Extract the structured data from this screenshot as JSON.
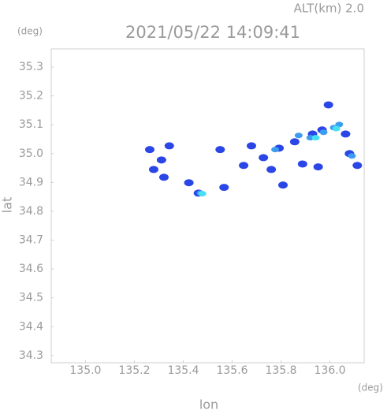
{
  "chart_data": {
    "type": "scatter",
    "title": "2021/05/22 14:09:41",
    "subtitle": "ALT(km) 2.0",
    "y_unit": "(deg)",
    "x_unit": "(deg)",
    "x_label": "lon",
    "y_label": "lat",
    "xlim": [
      134.86,
      136.14
    ],
    "ylim": [
      34.275,
      35.363
    ],
    "xticks": [
      {
        "value": 135.0,
        "label": "135.0"
      },
      135.2,
      135.4,
      135.6,
      135.8,
      {
        "value": 136.0,
        "label": "136.0"
      }
    ],
    "yticks": [
      34.3,
      34.4,
      34.5,
      34.6,
      34.7,
      34.8,
      34.9,
      {
        "value": 35.0,
        "label": "35.0"
      },
      35.1,
      35.2,
      35.3
    ],
    "grid": false,
    "series": [
      {
        "color": "#2a46e6",
        "x": [
          135.263,
          135.279,
          135.321,
          135.311,
          135.343,
          135.423,
          135.462,
          135.567,
          135.551,
          135.647,
          135.679,
          135.728,
          135.76,
          135.808,
          135.792,
          135.856,
          135.888,
          135.952,
          135.994,
          136.064,
          136.08,
          136.112,
          135.968,
          135.929
        ],
        "values": [
          35.014,
          34.945,
          34.918,
          34.978,
          35.027,
          34.899,
          34.863,
          34.883,
          35.014,
          34.959,
          35.027,
          34.986,
          34.945,
          34.891,
          35.019,
          35.041,
          34.964,
          34.954,
          35.169,
          35.068,
          35.0,
          34.959,
          35.082,
          35.068
        ]
      },
      {
        "color": "#3c9cf0",
        "x": [
          135.872,
          135.92,
          135.974,
          136.016,
          136.038,
          135.776,
          135.471,
          136.09
        ],
        "values": [
          35.063,
          35.055,
          35.074,
          35.09,
          35.101,
          35.014,
          34.863,
          34.992
        ]
      },
      {
        "color": "#46e0f2",
        "x": [
          135.942,
          136.026,
          135.478
        ],
        "values": [
          35.055,
          35.087,
          34.861
        ]
      }
    ]
  }
}
